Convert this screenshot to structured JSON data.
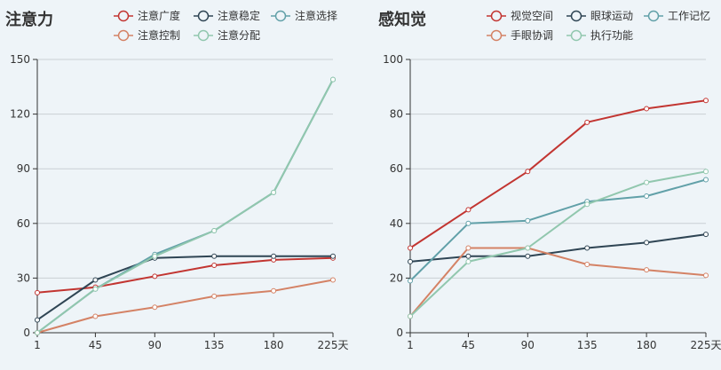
{
  "chart_data": [
    {
      "type": "line",
      "title": "注意力",
      "x": [
        1,
        45,
        90,
        135,
        180,
        225
      ],
      "x_tick_labels": [
        "1",
        "45",
        "90",
        "135",
        "180",
        "225天"
      ],
      "ylim": [
        0,
        150
      ],
      "yticks": [
        0,
        30,
        60,
        90,
        120,
        150
      ],
      "grid": true,
      "legend_position": "top",
      "series": [
        {
          "name": "注意广度",
          "color": "#c23531",
          "values": [
            22,
            25,
            31,
            37,
            40,
            41
          ]
        },
        {
          "name": "注意稳定",
          "color": "#2f4554",
          "values": [
            7,
            29,
            41,
            42,
            42,
            42
          ]
        },
        {
          "name": "注意选择",
          "color": "#61a0a8",
          "values": [
            0,
            24,
            43,
            56,
            77,
            139
          ]
        },
        {
          "name": "注意控制",
          "color": "#d48265",
          "values": [
            0,
            9,
            14,
            20,
            23,
            29
          ]
        },
        {
          "name": "注意分配",
          "color": "#91c7ae",
          "values": [
            0,
            24,
            42,
            56,
            77,
            139
          ]
        }
      ]
    },
    {
      "type": "line",
      "title": "感知觉",
      "x": [
        1,
        45,
        90,
        135,
        180,
        225
      ],
      "x_tick_labels": [
        "1",
        "45",
        "90",
        "135",
        "180",
        "225天"
      ],
      "ylim": [
        0,
        100
      ],
      "yticks": [
        0,
        20,
        40,
        60,
        80,
        100
      ],
      "grid": true,
      "legend_position": "top",
      "series": [
        {
          "name": "视觉空间",
          "color": "#c23531",
          "values": [
            31,
            45,
            59,
            77,
            82,
            85
          ]
        },
        {
          "name": "眼球运动",
          "color": "#2f4554",
          "values": [
            26,
            28,
            28,
            31,
            33,
            36
          ]
        },
        {
          "name": "工作记忆",
          "color": "#61a0a8",
          "values": [
            19,
            40,
            41,
            48,
            50,
            56
          ]
        },
        {
          "name": "手眼协调",
          "color": "#d48265",
          "values": [
            6,
            31,
            31,
            25,
            23,
            21
          ]
        },
        {
          "name": "执行功能",
          "color": "#91c7ae",
          "values": [
            6,
            26,
            31,
            47,
            55,
            59
          ]
        }
      ]
    }
  ]
}
